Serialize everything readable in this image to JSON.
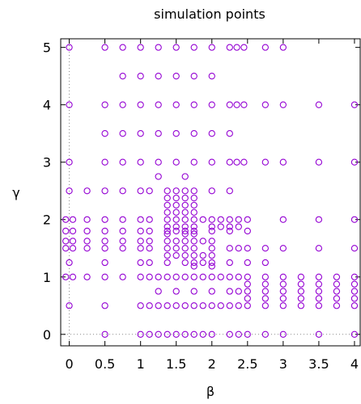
{
  "chart_data": {
    "type": "scatter",
    "title": "simulation points",
    "xlabel": "β",
    "ylabel": "γ",
    "xlim": [
      -0.12,
      4.08
    ],
    "ylim": [
      -0.2,
      5.15
    ],
    "x_ticks": [
      0,
      0.5,
      1,
      1.5,
      2,
      2.5,
      3,
      3.5,
      4
    ],
    "x_tick_labels": [
      "0",
      "0.5",
      "1",
      "1.5",
      "2",
      "2.5",
      "3",
      "3.5",
      "4"
    ],
    "y_ticks": [
      0,
      1,
      2,
      3,
      4,
      5
    ],
    "y_tick_labels": [
      "0",
      "1",
      "2",
      "3",
      "4",
      "5"
    ],
    "grid": false,
    "zero_lines": "dotted",
    "marker": "open-circle",
    "marker_color": "#9400d3",
    "rows": [
      {
        "y": 5,
        "x": [
          0,
          0.5,
          0.75,
          1,
          1.25,
          1.5,
          1.75,
          2,
          2.25,
          2.35,
          2.45,
          2.75,
          3
        ]
      },
      {
        "y": 4.5,
        "x": [
          0.75,
          1,
          1.25,
          1.5,
          1.75,
          2
        ]
      },
      {
        "y": 4,
        "x": [
          0,
          0.5,
          0.75,
          1,
          1.25,
          1.5,
          1.75,
          2,
          2.25,
          2.35,
          2.45,
          2.75,
          3,
          3.5,
          4
        ]
      },
      {
        "y": 3.5,
        "x": [
          0.5,
          0.75,
          1,
          1.25,
          1.5,
          1.75,
          2,
          2.25
        ]
      },
      {
        "y": 3,
        "x": [
          0,
          0.5,
          0.75,
          1,
          1.25,
          1.5,
          1.75,
          2,
          2.25,
          2.35,
          2.45,
          2.75,
          3,
          3.5,
          4
        ]
      },
      {
        "y": 2.75,
        "x": [
          1.25,
          1.625
        ]
      },
      {
        "y": 2.5,
        "x": [
          0,
          0.25,
          0.5,
          0.75,
          1,
          1.125,
          1.375,
          1.5,
          1.625,
          1.75,
          2,
          2.25
        ]
      },
      {
        "y": 2.375,
        "x": [
          1.375,
          1.5,
          1.625,
          1.75
        ]
      },
      {
        "y": 2.25,
        "x": [
          1.375,
          1.5,
          1.625,
          1.75
        ]
      },
      {
        "y": 2.125,
        "x": [
          1.375,
          1.5,
          1.625,
          1.75
        ]
      },
      {
        "y": 2,
        "x": [
          -0.05,
          0.05,
          0.25,
          0.5,
          0.75,
          1,
          1.125,
          1.375,
          1.5,
          1.625,
          1.75,
          1.875,
          2,
          2.125,
          2.25,
          2.375,
          2.5,
          3,
          3.5,
          4
        ]
      },
      {
        "y": 1.875,
        "x": [
          1.375,
          1.5,
          1.625,
          1.75,
          2,
          2.125,
          2.25,
          2.375
        ]
      },
      {
        "y": 1.8,
        "x": [
          -0.05,
          0.05,
          0.25,
          0.5,
          0.75,
          1,
          1.125,
          1.375,
          1.5,
          1.625,
          1.75,
          2,
          2.25,
          2.5
        ]
      },
      {
        "y": 1.75,
        "x": [
          1.375,
          1.625,
          1.75
        ]
      },
      {
        "y": 1.625,
        "x": [
          -0.05,
          0.05,
          0.25,
          0.5,
          0.75,
          1,
          1.125,
          1.375,
          1.5,
          1.625,
          1.75,
          1.875,
          2
        ]
      },
      {
        "y": 1.5,
        "x": [
          -0.05,
          0.05,
          0.25,
          0.5,
          0.75,
          1,
          1.125,
          1.375,
          1.5,
          1.625,
          1.75,
          2,
          2.25,
          2.375,
          2.5,
          2.75,
          3,
          3.5,
          4
        ]
      },
      {
        "y": 1.375,
        "x": [
          1.375,
          1.5,
          1.625,
          1.75,
          1.875,
          2
        ]
      },
      {
        "y": 1.25,
        "x": [
          0,
          0.5,
          1,
          1.125,
          1.375,
          1.625,
          1.75,
          1.875,
          2,
          2.25,
          2.5,
          2.75
        ]
      },
      {
        "y": 1.1875,
        "x": [
          1.75,
          2
        ]
      },
      {
        "y": 1,
        "x": [
          -0.05,
          0.05,
          0.25,
          0.5,
          0.75,
          1,
          1.125,
          1.25,
          1.375,
          1.5,
          1.625,
          1.75,
          1.875,
          2,
          2.125,
          2.25,
          2.375,
          2.5,
          2.75,
          3,
          3.25,
          3.5,
          3.75,
          4
        ]
      },
      {
        "y": 0.875,
        "x": [
          2.5,
          2.75,
          3,
          3.25,
          3.5,
          3.75,
          4
        ]
      },
      {
        "y": 0.75,
        "x": [
          1.25,
          1.5,
          1.75,
          2,
          2.25,
          2.375,
          2.5,
          2.75,
          3,
          3.25,
          3.5,
          3.75,
          4
        ]
      },
      {
        "y": 0.625,
        "x": [
          2.5,
          2.75,
          3,
          3.25,
          3.5,
          3.75,
          4
        ]
      },
      {
        "y": 0.5,
        "x": [
          0,
          0.5,
          1,
          1.125,
          1.25,
          1.375,
          1.5,
          1.625,
          1.75,
          1.875,
          2,
          2.125,
          2.25,
          2.375,
          2.5,
          2.75,
          3,
          3.25,
          3.5,
          3.75,
          4
        ]
      },
      {
        "y": 0,
        "x": [
          0.5,
          1,
          1.125,
          1.25,
          1.375,
          1.5,
          1.625,
          1.75,
          1.875,
          2,
          2.25,
          2.375,
          2.5,
          2.75,
          3,
          3.5,
          4
        ]
      }
    ]
  }
}
